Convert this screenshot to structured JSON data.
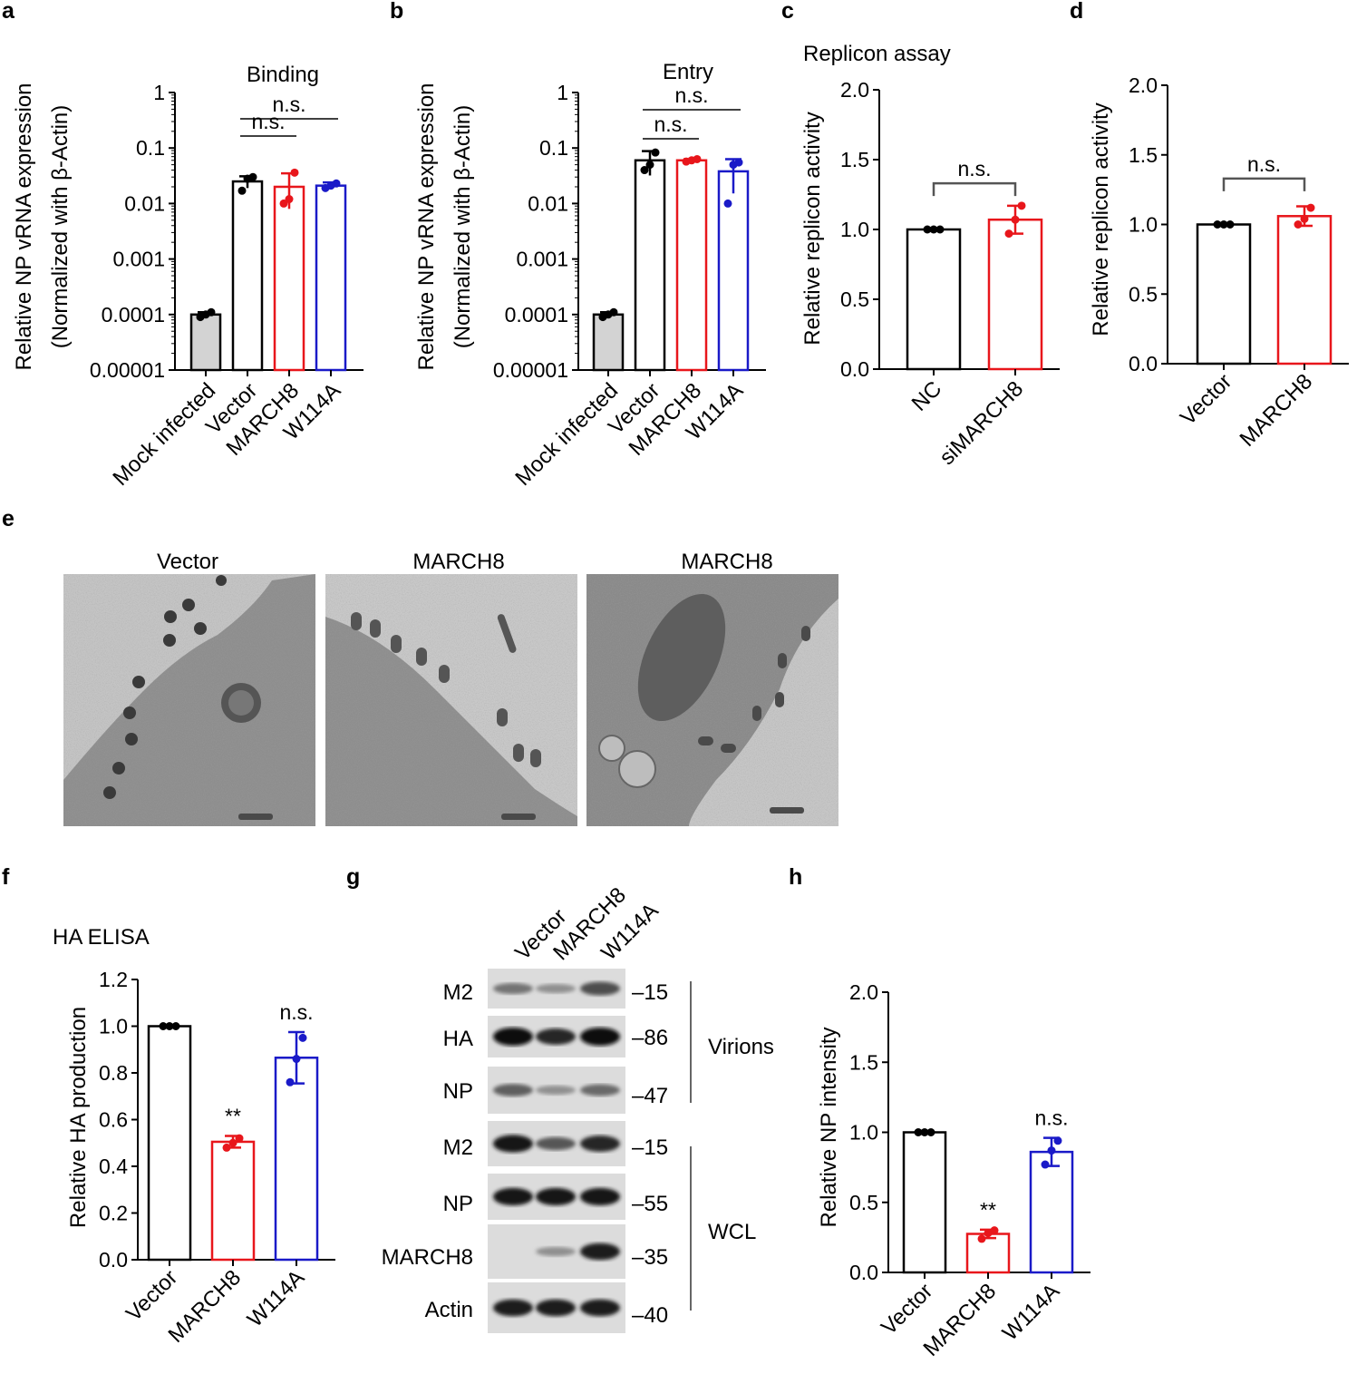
{
  "colors": {
    "black": "#000000",
    "red": "#e8161b",
    "blue": "#1a1ac8",
    "grey": "#d3d3d3",
    "em_bg": "#b4b4b4",
    "band": "#1c1c1c"
  },
  "panels": {
    "a": {
      "letter": "a",
      "title": "Binding",
      "ylabel1": "Relative NP vRNA expression",
      "ylabel2": "(Normalized with β-Actin)"
    },
    "b": {
      "letter": "b",
      "title": "Entry",
      "ylabel1": "Relative NP vRNA expression",
      "ylabel2": "(Normalized with β-Actin)"
    },
    "c": {
      "letter": "c",
      "title": "Replicon assay",
      "ylabel": "Relative replicon activity"
    },
    "d": {
      "letter": "d",
      "ylabel": "Relative replicon activity"
    },
    "e": {
      "letter": "e",
      "images": [
        {
          "caption": "Vector"
        },
        {
          "caption": "MARCH8"
        },
        {
          "caption": "MARCH8"
        }
      ]
    },
    "f": {
      "letter": "f",
      "title": "HA ELISA",
      "ylabel": "Relative HA production"
    },
    "g": {
      "letter": "g",
      "lanes": [
        "Vector",
        "MARCH8",
        "W114A"
      ],
      "rows": [
        {
          "label": "M2",
          "mw": "15",
          "intensity": [
            0.45,
            0.3,
            0.65
          ]
        },
        {
          "label": "HA",
          "mw": "86",
          "intensity": [
            1.0,
            0.85,
            1.0
          ]
        },
        {
          "label": "NP",
          "mw": "47",
          "intensity": [
            0.55,
            0.3,
            0.5
          ]
        },
        {
          "label": "M2",
          "mw": "15",
          "intensity": [
            0.95,
            0.6,
            0.85
          ]
        },
        {
          "label": "NP",
          "mw": "55",
          "intensity": [
            0.95,
            0.95,
            0.95
          ]
        },
        {
          "label": "MARCH8",
          "mw": "35",
          "intensity": [
            0.02,
            0.3,
            0.9
          ]
        },
        {
          "label": "Actin",
          "mw": "40",
          "intensity": [
            0.9,
            0.9,
            0.9
          ]
        }
      ],
      "groups": [
        "Virions",
        "WCL"
      ]
    },
    "h": {
      "letter": "h",
      "ylabel": "Relative NP intensity"
    }
  },
  "chart_data": [
    {
      "id": "a",
      "type": "bar",
      "title": "Binding",
      "yscale": "log",
      "ylim": [
        1e-05,
        1
      ],
      "ylabel": "Relative NP vRNA expression (Normalized with β-Actin)",
      "yticks": [
        "1",
        "0.1",
        "0.01",
        "0.001",
        "0.0001",
        "0.00001"
      ],
      "categories": [
        "Mock infected",
        "Vector",
        "MARCH8",
        "W114A"
      ],
      "values": [
        0.0001,
        0.025,
        0.02,
        0.021
      ],
      "errors": [
        1e-05,
        0.006,
        0.015,
        0.003
      ],
      "points": [
        [
          9e-05,
          0.0001,
          0.00011
        ],
        [
          0.017,
          0.028,
          0.03
        ],
        [
          0.01,
          0.012,
          0.036
        ],
        [
          0.019,
          0.021,
          0.023
        ]
      ],
      "annotations": [
        {
          "text": "n.s.",
          "from": 1,
          "to": 2
        },
        {
          "text": "n.s.",
          "from": 1,
          "to": 3
        }
      ]
    },
    {
      "id": "b",
      "type": "bar",
      "title": "Entry",
      "yscale": "log",
      "ylim": [
        1e-05,
        1
      ],
      "ylabel": "Relative NP vRNA expression (Normalized with β-Actin)",
      "yticks": [
        "1",
        "0.1",
        "0.01",
        "0.001",
        "0.0001",
        "0.00001"
      ],
      "categories": [
        "Mock infected",
        "Vector",
        "MARCH8",
        "W114A"
      ],
      "values": [
        0.0001,
        0.06,
        0.06,
        0.038
      ],
      "errors": [
        1e-05,
        0.028,
        0.003,
        0.025
      ],
      "points": [
        [
          9e-05,
          0.0001,
          0.00011
        ],
        [
          0.04,
          0.05,
          0.083
        ],
        [
          0.057,
          0.06,
          0.063
        ],
        [
          0.01,
          0.05,
          0.055
        ]
      ],
      "annotations": [
        {
          "text": "n.s.",
          "from": 1,
          "to": 2
        },
        {
          "text": "n.s.",
          "from": 1,
          "to": 3
        }
      ]
    },
    {
      "id": "c",
      "type": "bar",
      "title": "Replicon assay",
      "ylim": [
        0,
        2
      ],
      "ylabel": "Relative replicon activity",
      "yticks": [
        "0.0",
        "0.5",
        "1.0",
        "1.5",
        "2.0"
      ],
      "categories": [
        "NC",
        "siMARCH8"
      ],
      "values": [
        1.0,
        1.07
      ],
      "errors": [
        0.0,
        0.1
      ],
      "points": [
        [
          1.0,
          1.0,
          1.0
        ],
        [
          0.97,
          1.07,
          1.17
        ]
      ],
      "annotations": [
        {
          "text": "n.s.",
          "from": 0,
          "to": 1
        }
      ]
    },
    {
      "id": "d",
      "type": "bar",
      "ylim": [
        0,
        2
      ],
      "ylabel": "Relative replicon activity",
      "yticks": [
        "0.0",
        "0.5",
        "1.0",
        "1.5",
        "2.0"
      ],
      "categories": [
        "Vector",
        "MARCH8"
      ],
      "values": [
        1.0,
        1.06
      ],
      "errors": [
        0.0,
        0.07
      ],
      "points": [
        [
          1.0,
          1.0,
          1.0
        ],
        [
          1.0,
          1.04,
          1.12
        ]
      ],
      "annotations": [
        {
          "text": "n.s.",
          "from": 0,
          "to": 1
        }
      ]
    },
    {
      "id": "f",
      "type": "bar",
      "title": "HA ELISA",
      "ylim": [
        0,
        1.2
      ],
      "ylabel": "Relative HA production",
      "yticks": [
        "0.0",
        "0.2",
        "0.4",
        "0.6",
        "0.8",
        "1.0",
        "1.2"
      ],
      "categories": [
        "Vector",
        "MARCH8",
        "W114A"
      ],
      "values": [
        1.0,
        0.505,
        0.865
      ],
      "errors": [
        0.0,
        0.025,
        0.11
      ],
      "points": [
        [
          1.0,
          1.0,
          1.0
        ],
        [
          0.48,
          0.5,
          0.52
        ],
        [
          0.76,
          0.86,
          0.95
        ]
      ],
      "annotations": [
        {
          "text": "**",
          "bar": 1
        },
        {
          "text": "n.s.",
          "bar": 2
        }
      ]
    },
    {
      "id": "h",
      "type": "bar",
      "ylim": [
        0,
        2
      ],
      "ylabel": "Relative NP intensity",
      "yticks": [
        "0.0",
        "0.5",
        "1.0",
        "1.5",
        "2.0"
      ],
      "categories": [
        "Vector",
        "MARCH8",
        "W114A"
      ],
      "values": [
        1.0,
        0.275,
        0.86
      ],
      "errors": [
        0.0,
        0.03,
        0.1
      ],
      "points": [
        [
          1.0,
          1.0,
          1.0
        ],
        [
          0.24,
          0.28,
          0.3
        ],
        [
          0.77,
          0.87,
          0.94
        ]
      ],
      "annotations": [
        {
          "text": "**",
          "bar": 1
        },
        {
          "text": "n.s.",
          "bar": 2
        }
      ]
    }
  ]
}
